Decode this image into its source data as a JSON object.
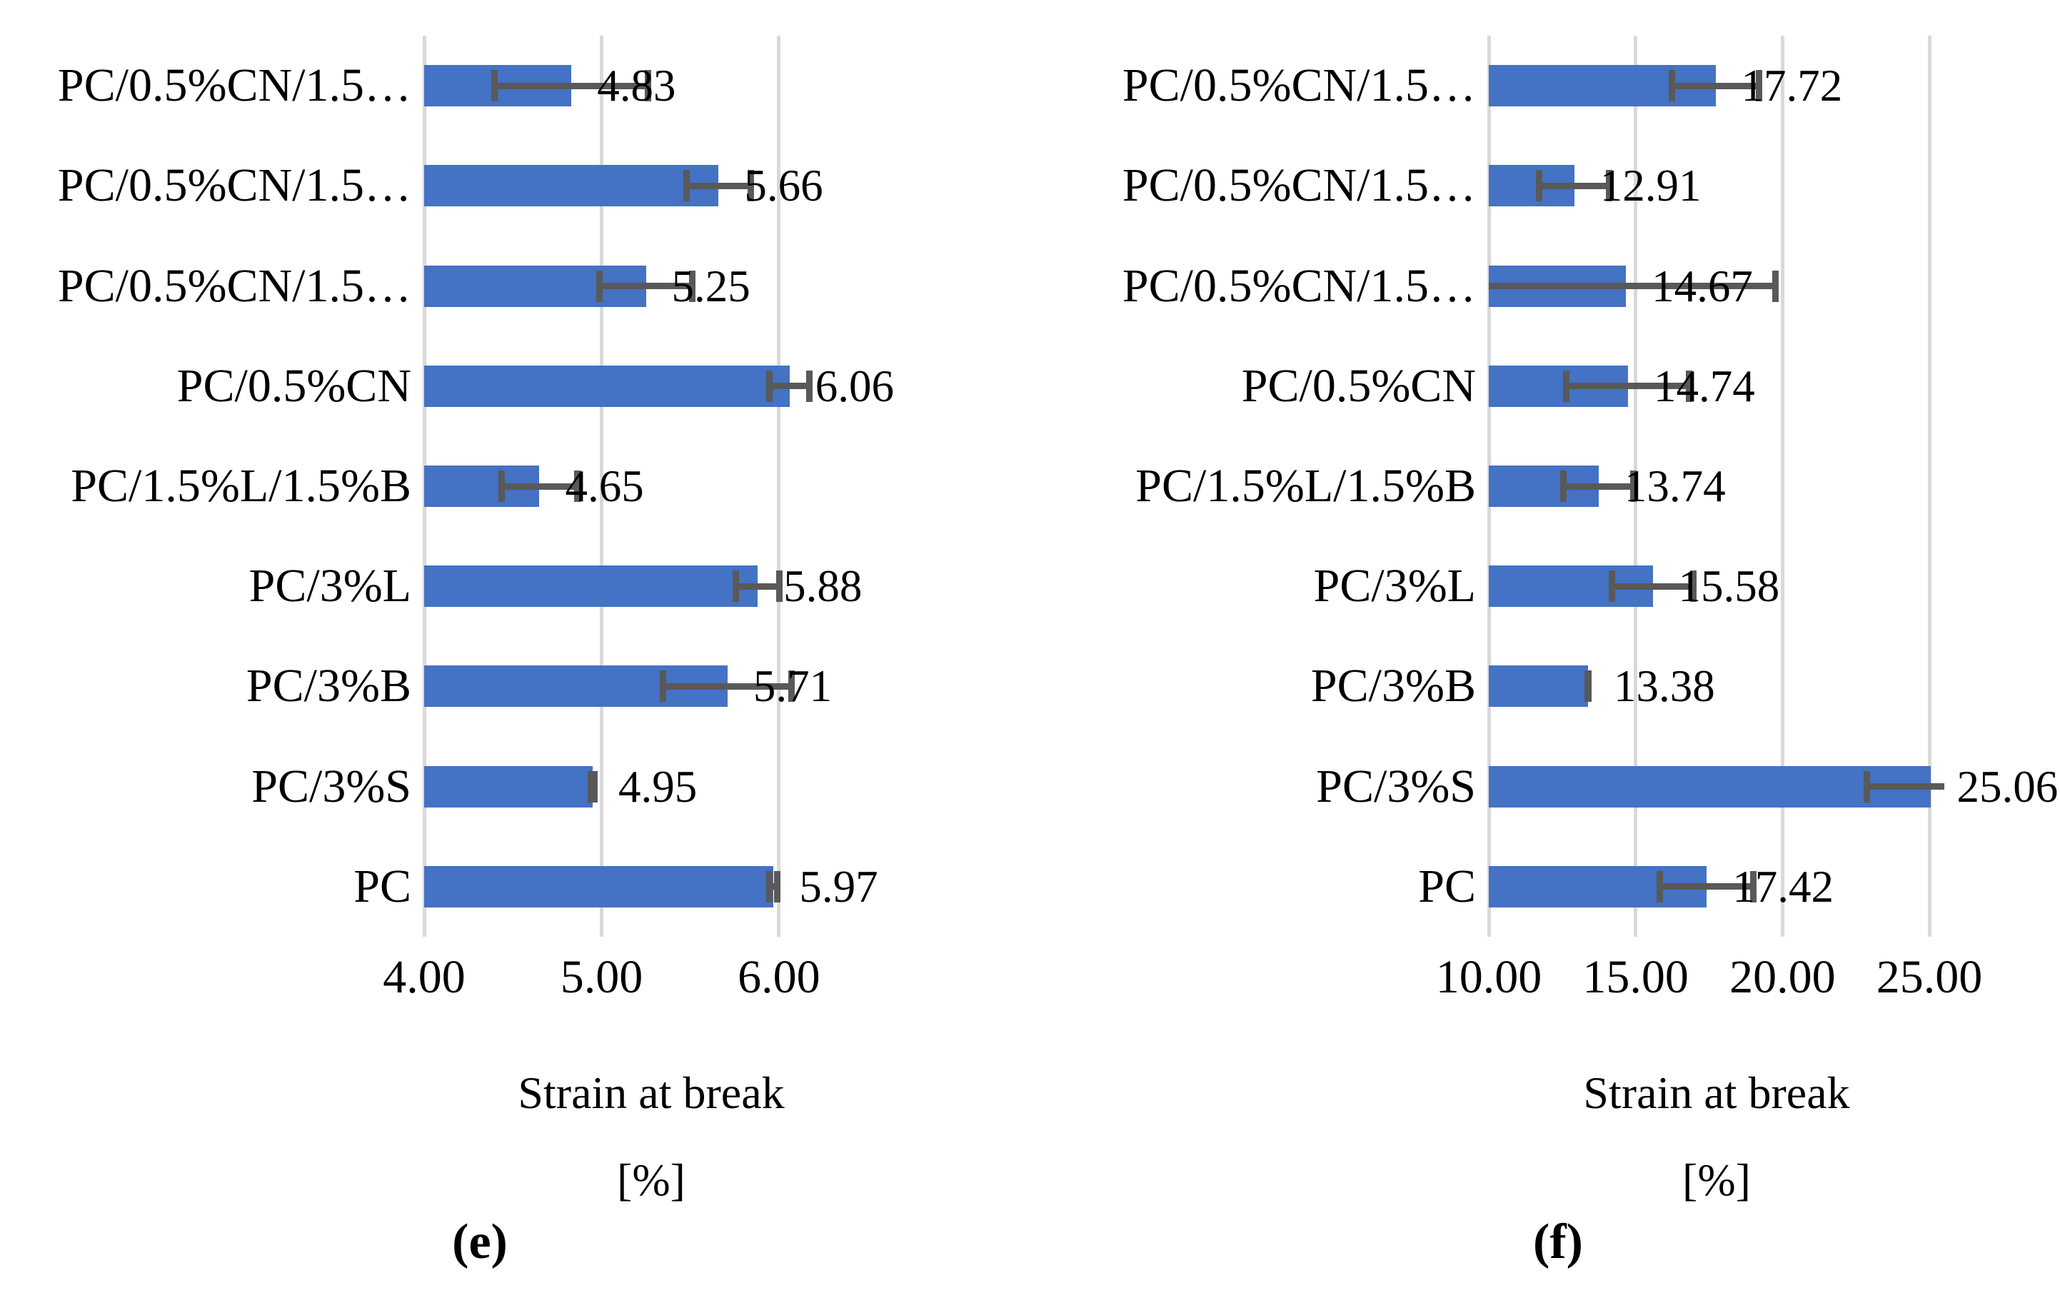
{
  "colors": {
    "bar": "#4472C4",
    "error_bar": "#595959",
    "gridline": "#D9D9D9",
    "text": "#000000",
    "background": "#FFFFFF"
  },
  "chart_data": [
    {
      "type": "bar",
      "orientation": "horizontal",
      "panel_label": "(e)",
      "xlabel_line1": "Strain at break",
      "xlabel_line2": "[%]",
      "xlim": [
        4.0,
        6.56
      ],
      "grid": "vertical",
      "x_ticks": [
        {
          "value": 4.0,
          "label": "4.00"
        },
        {
          "value": 5.0,
          "label": "5.00"
        },
        {
          "value": 6.0,
          "label": "6.00"
        }
      ],
      "categories": [
        "PC/0.5%CN/1.5…",
        "PC/0.5%CN/1.5…",
        "PC/0.5%CN/1.5…",
        "PC/0.5%CN",
        "PC/1.5%L/1.5%B",
        "PC/3%L",
        "PC/3%B",
        "PC/3%S",
        "PC"
      ],
      "values": [
        4.83,
        5.66,
        5.25,
        6.06,
        4.65,
        5.88,
        5.71,
        4.95,
        5.97
      ],
      "value_labels": [
        "4.83",
        "5.66",
        "5.25",
        "6.06",
        "4.65",
        "5.88",
        "5.71",
        "4.95",
        "5.97"
      ],
      "errors": [
        0.45,
        0.2,
        0.28,
        0.13,
        0.23,
        0.14,
        0.38,
        0.03,
        0.04
      ]
    },
    {
      "type": "bar",
      "orientation": "horizontal",
      "panel_label": "(f)",
      "xlabel_line1": "Strain at break",
      "xlabel_line2": "[%]",
      "xlim": [
        10.0,
        25.51
      ],
      "grid": "vertical",
      "x_ticks": [
        {
          "value": 10.0,
          "label": "10.00"
        },
        {
          "value": 15.0,
          "label": "15.00"
        },
        {
          "value": 20.0,
          "label": "20.00"
        },
        {
          "value": 25.0,
          "label": "25.00"
        }
      ],
      "categories": [
        "PC/0.5%CN/1.5…",
        "PC/0.5%CN/1.5…",
        "PC/0.5%CN/1.5…",
        "PC/0.5%CN",
        "PC/1.5%L/1.5%B",
        "PC/3%L",
        "PC/3%B",
        "PC/3%S",
        "PC"
      ],
      "values": [
        17.72,
        12.91,
        14.67,
        14.74,
        13.74,
        15.58,
        13.38,
        25.06,
        17.42
      ],
      "value_labels": [
        "17.72",
        "12.91",
        "14.67",
        "14.74",
        "13.74",
        "15.58",
        "13.38",
        "25.06",
        "17.42"
      ],
      "errors": [
        1.6,
        1.3,
        5.2,
        2.2,
        1.3,
        1.5,
        0.12,
        2.3,
        1.7
      ]
    }
  ]
}
